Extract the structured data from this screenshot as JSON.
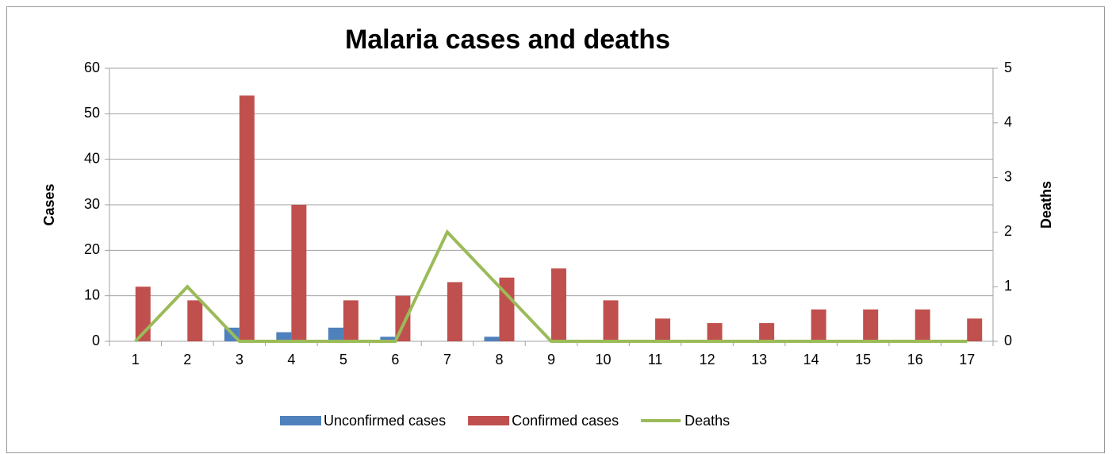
{
  "chart_data": {
    "type": "bar",
    "title": "Malaria cases  and deaths",
    "y_label": "Cases",
    "y2_label": "Deaths",
    "categories": [
      "1",
      "2",
      "3",
      "4",
      "5",
      "6",
      "7",
      "8",
      "9",
      "10",
      "11",
      "12",
      "13",
      "14",
      "15",
      "16",
      "17"
    ],
    "series": [
      {
        "name": "Unconfirmed cases",
        "type": "bar",
        "color": "#4f81bd",
        "values": [
          0,
          0,
          3,
          2,
          3,
          1,
          0,
          1,
          0,
          0,
          0,
          0,
          0,
          0,
          0,
          0,
          0
        ]
      },
      {
        "name": "Confirmed cases",
        "type": "bar",
        "color": "#c0504d",
        "values": [
          12,
          9,
          54,
          30,
          9,
          10,
          13,
          14,
          16,
          9,
          5,
          4,
          4,
          7,
          7,
          7,
          5
        ]
      },
      {
        "name": "Deaths",
        "type": "line",
        "axis": "y2",
        "color": "#9bbb59",
        "values": [
          0,
          1,
          0,
          0,
          0,
          0,
          2,
          1,
          0,
          0,
          0,
          0,
          0,
          0,
          0,
          0,
          0
        ]
      }
    ],
    "ylim": [
      0,
      60
    ],
    "yticks": [
      0,
      10,
      20,
      30,
      40,
      50,
      60
    ],
    "y2lim": [
      0,
      5
    ],
    "y2ticks": [
      0,
      1,
      2,
      3,
      4,
      5
    ],
    "grid": true,
    "legend": "bottom"
  }
}
